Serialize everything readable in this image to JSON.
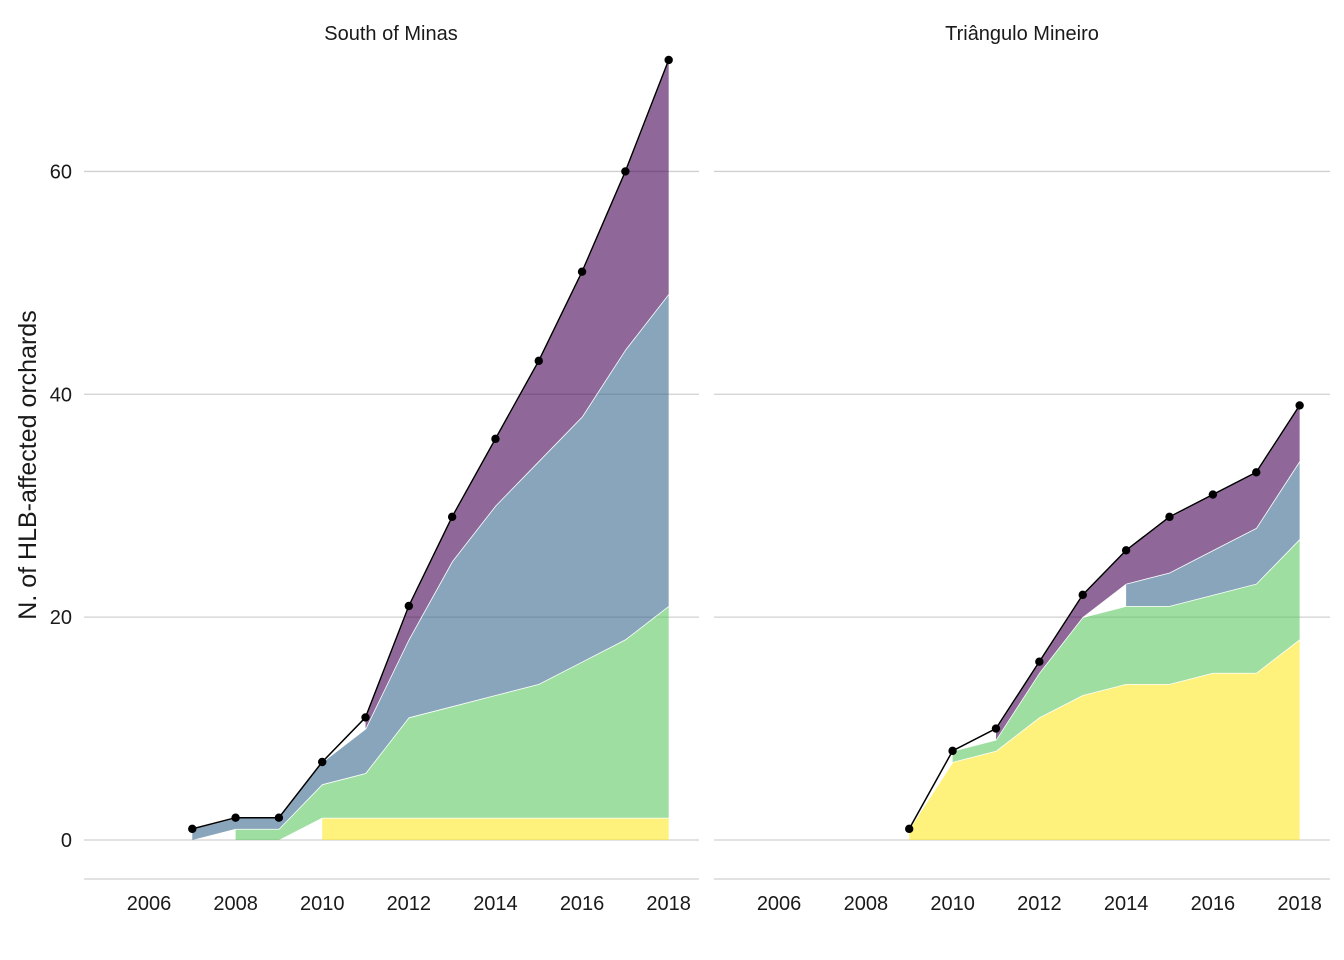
{
  "chart_data": {
    "type": "area",
    "stacked": true,
    "ylabel": "N. of HLB-affected orchards",
    "xlabel": "",
    "xlim": [
      2004.5,
      2018.7
    ],
    "ylim": [
      -3.5,
      70
    ],
    "x_ticks": [
      2006,
      2008,
      2010,
      2012,
      2014,
      2016,
      2018
    ],
    "y_ticks": [
      0,
      20,
      40,
      60
    ],
    "grid": "horizontal",
    "legend": "none",
    "series_colors": [
      "#FDE725",
      "#5EC962",
      "#3B698E",
      "#440154"
    ],
    "panels": [
      {
        "title": "South of Minas",
        "layers": [
          {
            "color": "#FDE725",
            "x": [
              2010,
              2011,
              2012,
              2013,
              2014,
              2015,
              2016,
              2017,
              2018
            ],
            "values": [
              2,
              2,
              2,
              2,
              2,
              2,
              2,
              2,
              2
            ]
          },
          {
            "color": "#5EC962",
            "x": [
              2008,
              2009,
              2010,
              2011,
              2012,
              2013,
              2014,
              2015,
              2016,
              2017,
              2018
            ],
            "values": [
              1,
              1,
              3,
              4,
              9,
              10,
              11,
              12,
              14,
              16,
              19
            ]
          },
          {
            "color": "#3B698E",
            "x": [
              2007,
              2008,
              2009,
              2010,
              2011,
              2012,
              2013,
              2014,
              2015,
              2016,
              2017,
              2018
            ],
            "values": [
              1,
              1,
              1,
              2,
              4,
              7,
              13,
              17,
              20,
              22,
              26,
              28
            ]
          },
          {
            "color": "#440154",
            "x": [
              2011,
              2012,
              2013,
              2014,
              2015,
              2016,
              2017,
              2018
            ],
            "values": [
              1,
              3,
              4,
              6,
              9,
              13,
              16,
              21
            ]
          }
        ],
        "totals": {
          "x": [
            2007,
            2008,
            2009,
            2010,
            2011,
            2012,
            2013,
            2014,
            2015,
            2016,
            2017,
            2018
          ],
          "y": [
            1,
            2,
            2,
            7,
            11,
            21,
            29,
            36,
            43,
            51,
            60,
            70
          ]
        }
      },
      {
        "title": "Triângulo Mineiro",
        "layers": [
          {
            "color": "#FDE725",
            "x": [
              2009,
              2010,
              2011,
              2012,
              2013,
              2014,
              2015,
              2016,
              2017,
              2018
            ],
            "values": [
              1,
              7,
              8,
              11,
              13,
              14,
              14,
              15,
              15,
              18
            ]
          },
          {
            "color": "#5EC962",
            "x": [
              2010,
              2011,
              2012,
              2013,
              2014,
              2015,
              2016,
              2017,
              2018
            ],
            "values": [
              1,
              1,
              4,
              7,
              7,
              7,
              7,
              8,
              9
            ]
          },
          {
            "color": "#3B698E",
            "x": [
              2014,
              2015,
              2016,
              2017,
              2018
            ],
            "values": [
              2,
              3,
              4,
              5,
              7
            ]
          },
          {
            "color": "#440154",
            "x": [
              2011,
              2012,
              2013,
              2014,
              2015,
              2016,
              2017,
              2018
            ],
            "values": [
              1,
              1,
              2,
              3,
              5,
              5,
              5,
              5
            ]
          }
        ],
        "totals": {
          "x": [
            2009,
            2010,
            2011,
            2012,
            2013,
            2014,
            2015,
            2016,
            2017,
            2018
          ],
          "y": [
            1,
            8,
            10,
            16,
            22,
            26,
            29,
            31,
            33,
            39
          ]
        }
      }
    ]
  }
}
